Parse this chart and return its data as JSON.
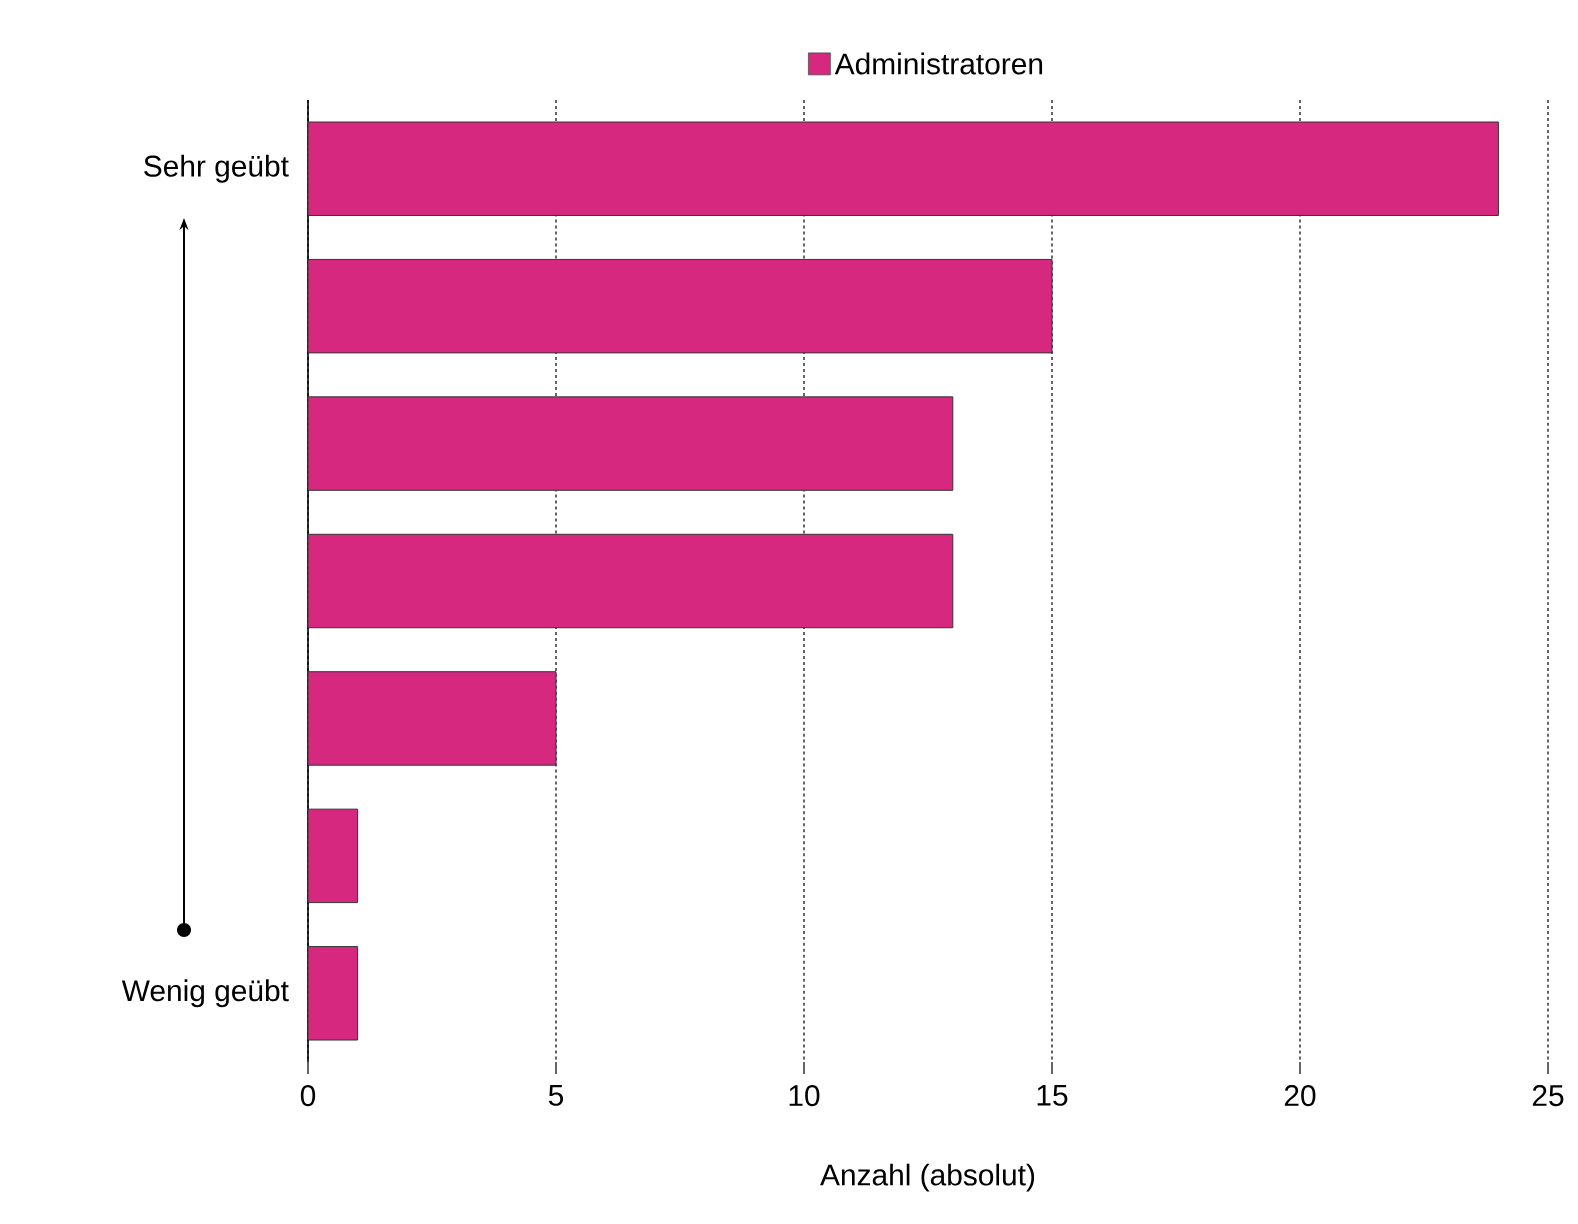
{
  "chart_data": {
    "type": "bar",
    "orientation": "horizontal",
    "categories": [
      "Sehr geübt",
      null,
      null,
      null,
      null,
      null,
      "Wenig geübt"
    ],
    "series": [
      {
        "name": "Administratoren",
        "color": "#d6287f",
        "values": [
          24,
          15,
          13,
          13,
          5,
          1,
          1
        ]
      }
    ],
    "xlabel": "Anzahl (absolut)",
    "xlim": [
      0,
      25
    ],
    "xticks": [
      0,
      5,
      10,
      15,
      20,
      25
    ],
    "grid": "x",
    "legend": "top"
  }
}
